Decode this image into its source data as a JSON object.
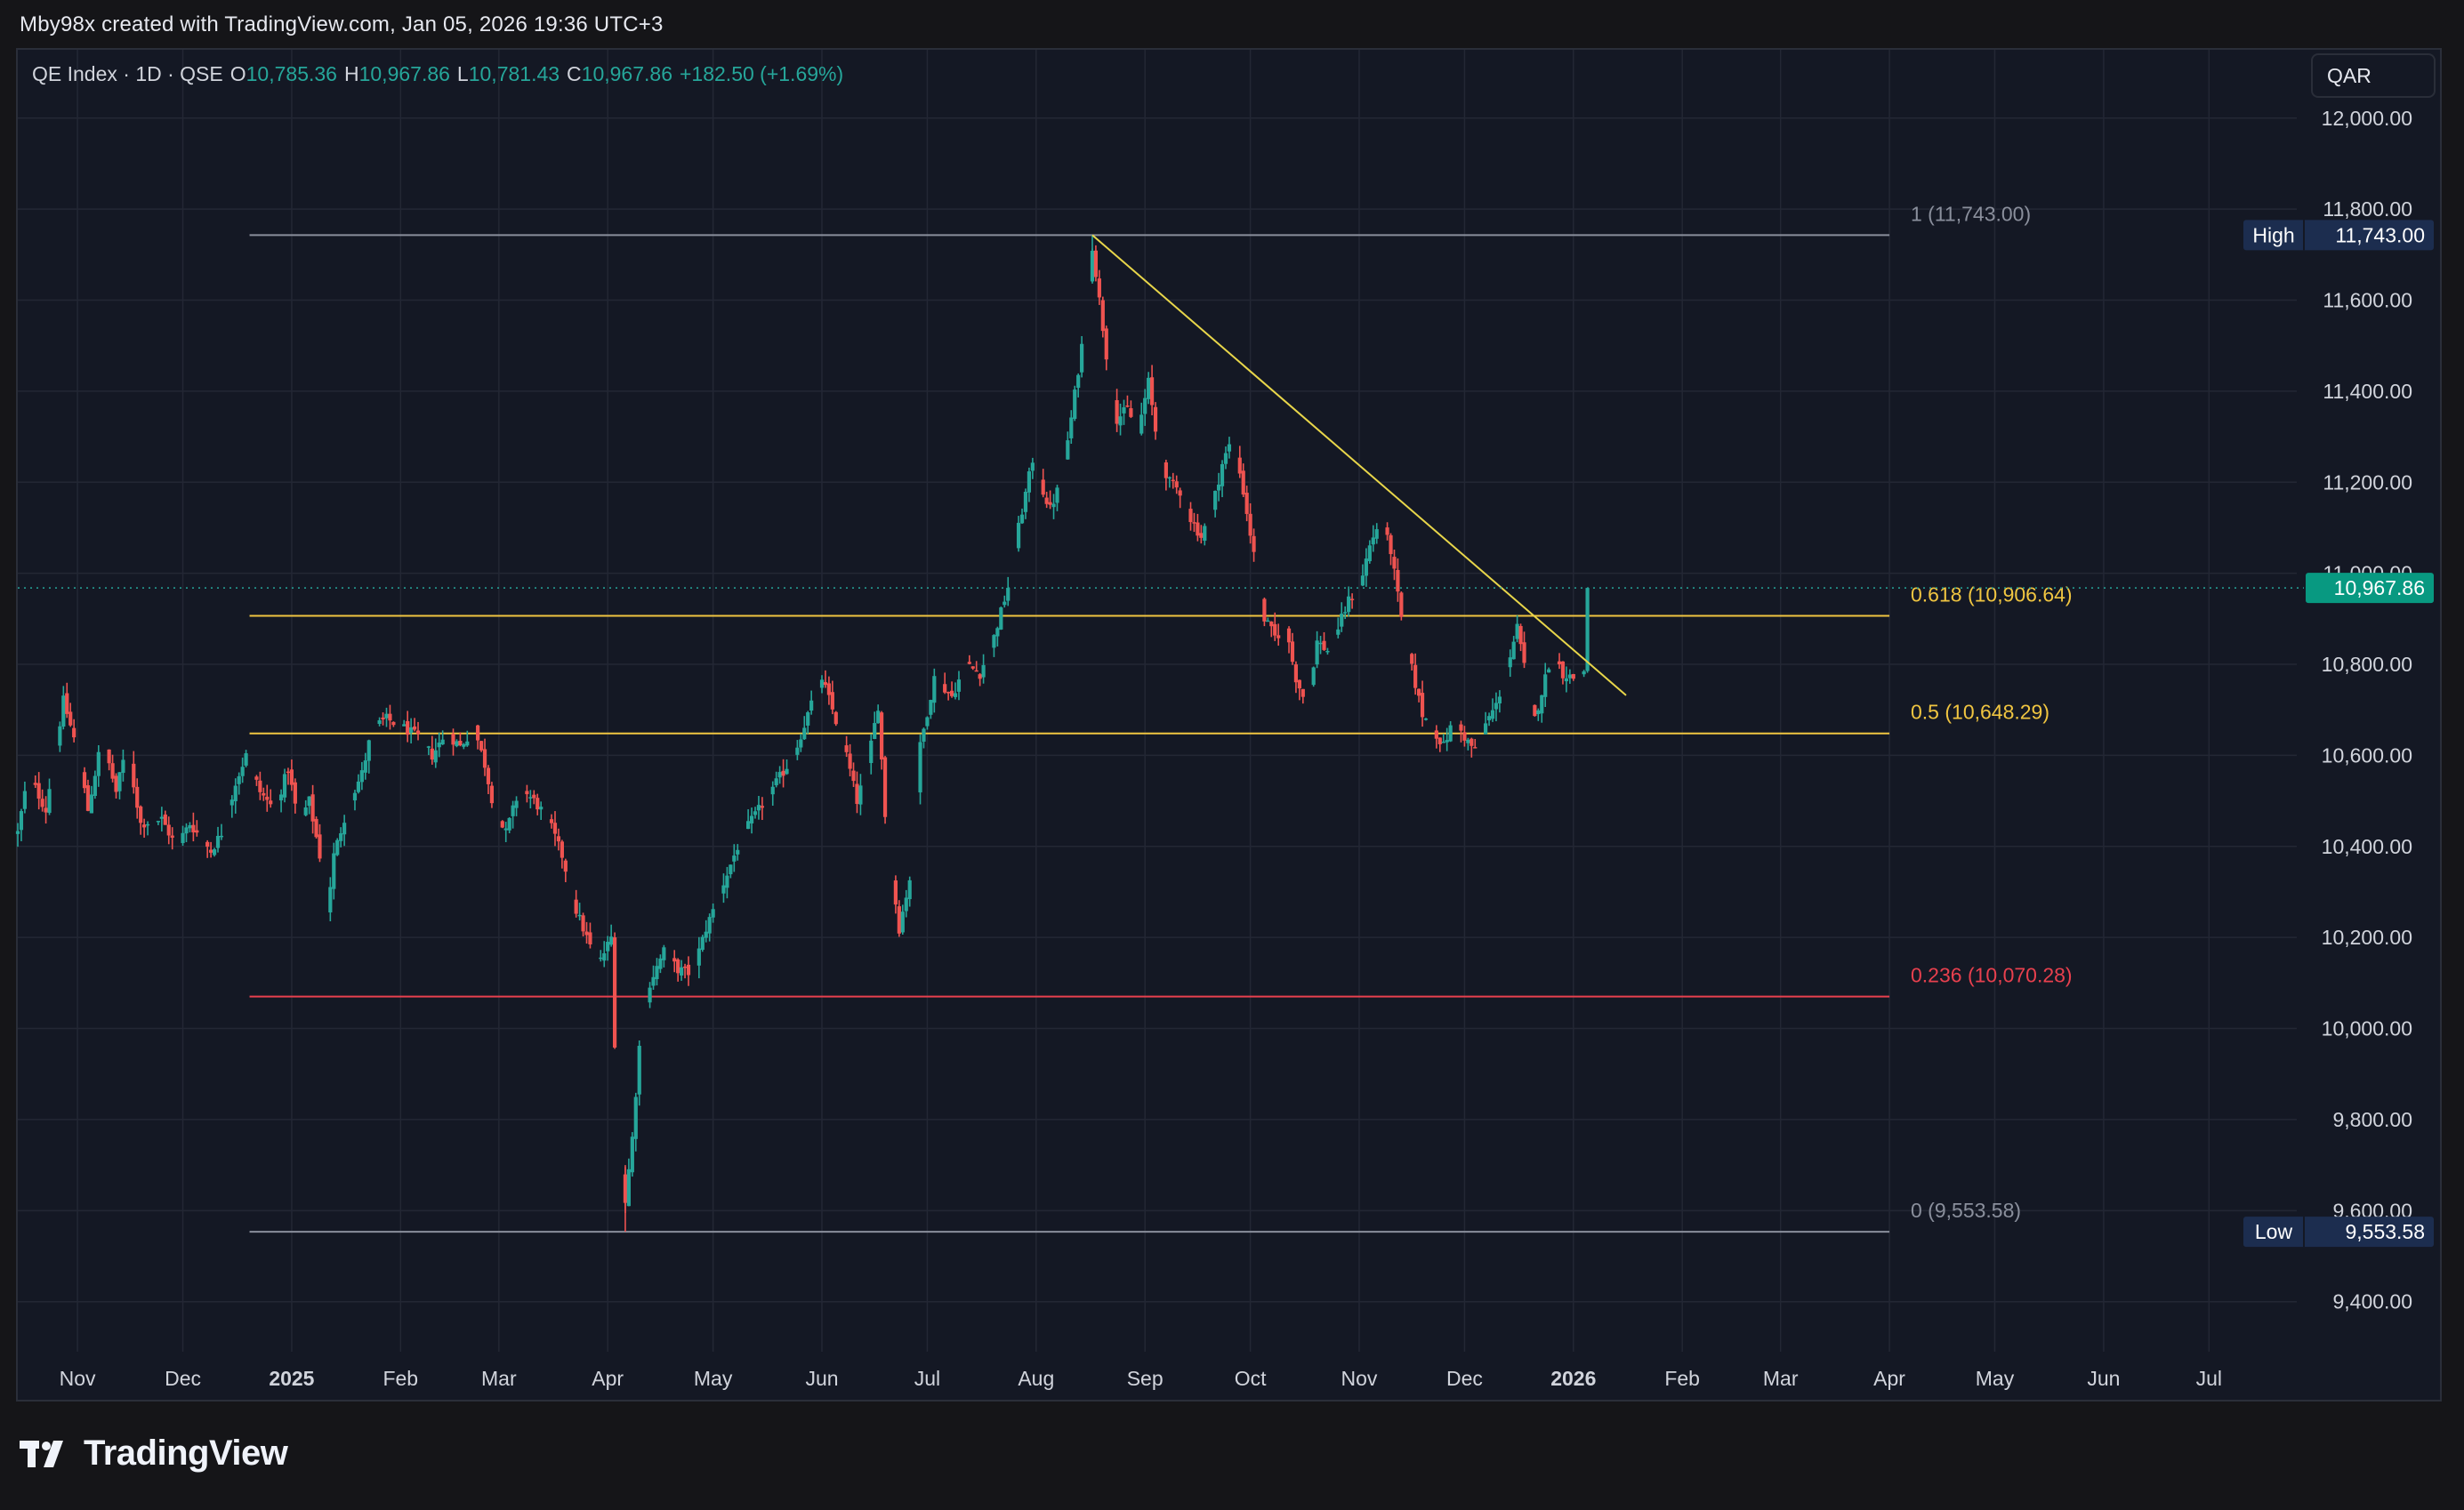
{
  "header": {
    "credit": "Mby98x created with TradingView.com, Jan 05, 2026 19:36 UTC+3"
  },
  "legend": {
    "symbol": "QE Index · 1D · QSE",
    "open_label": "O",
    "open": "10,785.36",
    "high_label": "H",
    "high": "10,967.86",
    "low_label": "L",
    "low": "10,781.43",
    "close_label": "C",
    "close": "10,967.86",
    "change": "+182.50 (+1.69%)"
  },
  "currency": "QAR",
  "footer": {
    "brand": "TradingView"
  },
  "colors": {
    "background": "#141824",
    "up": "#26a69a",
    "down": "#ef5350",
    "grid": "#232734",
    "fib_white": "#8a8f9c",
    "fib_yellow": "#f0c541",
    "fib_red": "#e8404e",
    "trendline": "#e8d64a",
    "price_tag": "#089981",
    "high_low_tag": "#1c2d4f"
  },
  "chart_data": {
    "type": "candlestick",
    "symbol": "QE Index",
    "interval": "1D",
    "exchange": "QSE",
    "currency": "QAR",
    "grid": true,
    "y_axis": {
      "range": [
        9290,
        12150
      ],
      "ticks": [
        9400,
        9600,
        9800,
        10000,
        10200,
        10400,
        10600,
        10800,
        11000,
        11200,
        11400,
        11600,
        11800,
        12000
      ],
      "tick_labels": [
        "9,400.00",
        "9,600.00",
        "9,800.00",
        "10,000.00",
        "10,200.00",
        "10,400.00",
        "10,600.00",
        "10,800.00",
        "11,000.00",
        "11,200.00",
        "11,400.00",
        "11,600.00",
        "11,800.00",
        "12,000.00"
      ]
    },
    "x_axis": {
      "range": [
        "2024-10-15",
        "2026-07-26"
      ],
      "ticks": [
        "2024-11-01",
        "2024-12-01",
        "2025-01-01",
        "2025-02-01",
        "2025-03-01",
        "2025-04-01",
        "2025-05-01",
        "2025-06-01",
        "2025-07-01",
        "2025-08-01",
        "2025-09-01",
        "2025-10-01",
        "2025-11-01",
        "2025-12-01",
        "2026-01-01",
        "2026-02-01",
        "2026-03-01",
        "2026-04-01",
        "2026-05-01",
        "2026-06-01",
        "2026-07-01"
      ],
      "tick_labels": [
        "Nov",
        "Dec",
        "2025",
        "Feb",
        "Mar",
        "Apr",
        "May",
        "Jun",
        "Jul",
        "Aug",
        "Sep",
        "Oct",
        "Nov",
        "Dec",
        "2026",
        "Feb",
        "Mar",
        "Apr",
        "May",
        "Jun",
        "Jul"
      ],
      "bold_labels": [
        "2025",
        "2026"
      ]
    },
    "last": {
      "date": "2026-01-05",
      "open": 10785.36,
      "high": 10967.86,
      "low": 10781.43,
      "close": 10967.86,
      "change": 182.5,
      "change_pct": 1.69,
      "label": "10,967.86"
    },
    "high_marker": {
      "label": "High",
      "value": "11,743.00",
      "price": 11743.0
    },
    "low_marker": {
      "label": "Low",
      "value": "9,553.58",
      "price": 9553.58
    },
    "fib_levels": [
      {
        "ratio": "1",
        "price": 11743.0,
        "label": "1 (11,743.00)",
        "color": "#8a8f9c"
      },
      {
        "ratio": "0.618",
        "price": 10906.64,
        "label": "0.618 (10,906.64)",
        "color": "#f0c541"
      },
      {
        "ratio": "0.5",
        "price": 10648.29,
        "label": "0.5 (10,648.29)",
        "color": "#f0c541"
      },
      {
        "ratio": "0.236",
        "price": 10070.28,
        "label": "0.236 (10,070.28)",
        "color": "#e8404e"
      },
      {
        "ratio": "0",
        "price": 9553.58,
        "label": "0 (9,553.58)",
        "color": "#8a8f9c"
      }
    ],
    "fib_range_dates": [
      "2024-12-20",
      "2026-04-01"
    ],
    "trendline": [
      {
        "date": "2025-08-17",
        "price": 11743.0
      },
      {
        "date": "2026-01-16",
        "price": 10732.0
      }
    ],
    "price_path": [
      [
        "2024-10-15",
        10430
      ],
      [
        "2024-10-18",
        10560
      ],
      [
        "2024-10-23",
        10480
      ],
      [
        "2024-10-28",
        10720
      ],
      [
        "2024-11-01",
        10610
      ],
      [
        "2024-11-04",
        10480
      ],
      [
        "2024-11-08",
        10640
      ],
      [
        "2024-11-12",
        10520
      ],
      [
        "2024-11-15",
        10620
      ],
      [
        "2024-11-19",
        10450
      ],
      [
        "2024-11-25",
        10460
      ],
      [
        "2024-11-29",
        10400
      ],
      [
        "2024-12-03",
        10450
      ],
      [
        "2024-12-06",
        10420
      ],
      [
        "2024-12-09",
        10390
      ],
      [
        "2024-12-12",
        10430
      ],
      [
        "2024-12-16",
        10540
      ],
      [
        "2024-12-19",
        10600
      ],
      [
        "2024-12-23",
        10520
      ],
      [
        "2024-12-27",
        10480
      ],
      [
        "2024-12-31",
        10570
      ],
      [
        "2025-01-03",
        10450
      ],
      [
        "2025-01-06",
        10500
      ],
      [
        "2025-01-09",
        10380
      ],
      [
        "2025-01-11",
        10250
      ],
      [
        "2025-01-13",
        10380
      ],
      [
        "2025-01-17",
        10490
      ],
      [
        "2025-01-21",
        10560
      ],
      [
        "2025-01-24",
        10660
      ],
      [
        "2025-01-28",
        10680
      ],
      [
        "2025-02-02",
        10660
      ],
      [
        "2025-02-06",
        10640
      ],
      [
        "2025-02-10",
        10600
      ],
      [
        "2025-02-14",
        10650
      ],
      [
        "2025-02-18",
        10620
      ],
      [
        "2025-02-22",
        10660
      ],
      [
        "2025-02-25",
        10580
      ],
      [
        "2025-02-28",
        10470
      ],
      [
        "2025-03-03",
        10430
      ],
      [
        "2025-03-07",
        10530
      ],
      [
        "2025-03-11",
        10500
      ],
      [
        "2025-03-15",
        10460
      ],
      [
        "2025-03-19",
        10380
      ],
      [
        "2025-03-23",
        10260
      ],
      [
        "2025-03-27",
        10180
      ],
      [
        "2025-03-30",
        10150
      ],
      [
        "2025-04-02",
        10200
      ],
      [
        "2025-04-04",
        9740
      ],
      [
        "2025-04-06",
        9620
      ],
      [
        "2025-04-08",
        9760
      ],
      [
        "2025-04-10",
        9960
      ],
      [
        "2025-04-13",
        10100
      ],
      [
        "2025-04-17",
        10170
      ],
      [
        "2025-04-21",
        10130
      ],
      [
        "2025-04-25",
        10120
      ],
      [
        "2025-04-29",
        10220
      ],
      [
        "2025-05-04",
        10320
      ],
      [
        "2025-05-09",
        10420
      ],
      [
        "2025-05-14",
        10480
      ],
      [
        "2025-05-19",
        10540
      ],
      [
        "2025-05-24",
        10600
      ],
      [
        "2025-05-28",
        10690
      ],
      [
        "2025-06-01",
        10770
      ],
      [
        "2025-06-04",
        10700
      ],
      [
        "2025-06-08",
        10600
      ],
      [
        "2025-06-11",
        10500
      ],
      [
        "2025-06-14",
        10580
      ],
      [
        "2025-06-17",
        10710
      ],
      [
        "2025-06-19",
        10470
      ],
      [
        "2025-06-21",
        10330
      ],
      [
        "2025-06-23",
        10220
      ],
      [
        "2025-06-26",
        10330
      ],
      [
        "2025-06-29",
        10620
      ],
      [
        "2025-07-03",
        10770
      ],
      [
        "2025-07-08",
        10730
      ],
      [
        "2025-07-12",
        10800
      ],
      [
        "2025-07-16",
        10780
      ],
      [
        "2025-07-20",
        10860
      ],
      [
        "2025-07-24",
        10970
      ],
      [
        "2025-07-27",
        11100
      ],
      [
        "2025-07-31",
        11250
      ],
      [
        "2025-08-03",
        11180
      ],
      [
        "2025-08-05",
        11140
      ],
      [
        "2025-08-08",
        11200
      ],
      [
        "2025-08-11",
        11340
      ],
      [
        "2025-08-14",
        11500
      ],
      [
        "2025-08-17",
        11720
      ],
      [
        "2025-08-19",
        11600
      ],
      [
        "2025-08-21",
        11480
      ],
      [
        "2025-08-24",
        11340
      ],
      [
        "2025-08-27",
        11360
      ],
      [
        "2025-08-30",
        11310
      ],
      [
        "2025-09-02",
        11420
      ],
      [
        "2025-09-05",
        11260
      ],
      [
        "2025-09-08",
        11200
      ],
      [
        "2025-09-11",
        11180
      ],
      [
        "2025-09-14",
        11120
      ],
      [
        "2025-09-17",
        11080
      ],
      [
        "2025-09-20",
        11140
      ],
      [
        "2025-09-23",
        11240
      ],
      [
        "2025-09-26",
        11300
      ],
      [
        "2025-09-29",
        11180
      ],
      [
        "2025-10-02",
        11040
      ],
      [
        "2025-10-05",
        10900
      ],
      [
        "2025-10-08",
        10860
      ],
      [
        "2025-10-11",
        10880
      ],
      [
        "2025-10-14",
        10770
      ],
      [
        "2025-10-17",
        10710
      ],
      [
        "2025-10-20",
        10850
      ],
      [
        "2025-10-23",
        10830
      ],
      [
        "2025-10-26",
        10880
      ],
      [
        "2025-10-29",
        10940
      ],
      [
        "2025-11-01",
        10970
      ],
      [
        "2025-11-04",
        11060
      ],
      [
        "2025-11-07",
        11120
      ],
      [
        "2025-11-10",
        11050
      ],
      [
        "2025-11-13",
        10900
      ],
      [
        "2025-11-16",
        10790
      ],
      [
        "2025-11-19",
        10690
      ],
      [
        "2025-11-22",
        10660
      ],
      [
        "2025-11-25",
        10620
      ],
      [
        "2025-11-28",
        10680
      ],
      [
        "2025-12-01",
        10640
      ],
      [
        "2025-12-04",
        10610
      ],
      [
        "2025-12-07",
        10670
      ],
      [
        "2025-12-10",
        10710
      ],
      [
        "2025-12-13",
        10790
      ],
      [
        "2025-12-16",
        10880
      ],
      [
        "2025-12-19",
        10750
      ],
      [
        "2025-12-21",
        10680
      ],
      [
        "2025-12-23",
        10740
      ],
      [
        "2025-12-26",
        10830
      ],
      [
        "2025-12-29",
        10780
      ],
      [
        "2026-01-01",
        10770
      ],
      [
        "2026-01-04",
        10785.36
      ]
    ]
  }
}
